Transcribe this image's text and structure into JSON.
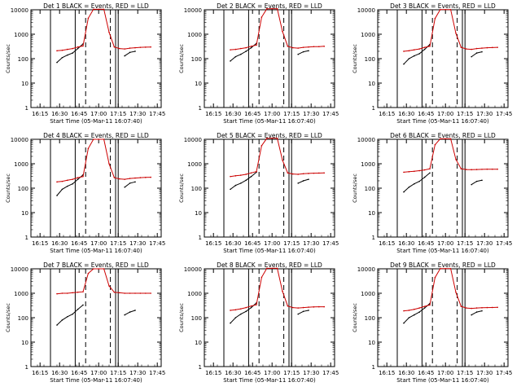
{
  "figure": {
    "background": "#ffffff",
    "event_color": "#000000",
    "lld_color": "#cc0000"
  },
  "chart_data": [
    {
      "type": "line",
      "title": "Det  1  BLACK = Events, RED = LLD",
      "ylabel": "Counts/sec",
      "xlabel": "Start Time (05-Mar-11 16:07:40)",
      "y_scale": "log",
      "ylim": [
        1,
        10000
      ],
      "yticks": [
        "1",
        "10",
        "100",
        "1000",
        "10000"
      ],
      "xticks": [
        "16:15",
        "16:30",
        "16:45",
        "17:00",
        "17:15",
        "17:30",
        "17:45"
      ],
      "x": [
        "16:24",
        "16:28",
        "16:32",
        "16:36",
        "16:40",
        "16:44",
        "16:48",
        "16:52",
        "16:56",
        "17:00",
        "17:04",
        "17:08",
        "17:12",
        "17:16",
        "17:20",
        "17:24",
        "17:28",
        "17:32",
        "17:36",
        "17:40"
      ],
      "series": [
        {
          "name": "Events",
          "color": "#000000",
          "values": [
            null,
            70,
            110,
            140,
            170,
            260,
            400,
            null,
            null,
            null,
            null,
            null,
            null,
            null,
            130,
            180,
            200,
            null,
            null,
            null
          ]
        },
        {
          "name": "LLD",
          "color": "#cc0000",
          "values": [
            null,
            210,
            220,
            240,
            260,
            300,
            330,
            4500,
            10500,
            10500,
            10500,
            1200,
            300,
            260,
            250,
            270,
            280,
            290,
            295,
            300
          ]
        }
      ],
      "vertical_lines": {
        "solid": [
          "16:23",
          "16:42",
          "17:13",
          "17:15"
        ],
        "dashed": [
          "16:50",
          "17:09"
        ]
      }
    },
    {
      "type": "line",
      "title": "Det  2  BLACK = Events, RED = LLD",
      "ylabel": "Counts/sec",
      "xlabel": "Start Time (05-Mar-11 16:07:40)",
      "y_scale": "log",
      "ylim": [
        1,
        10000
      ],
      "yticks": [
        "1",
        "10",
        "100",
        "1000",
        "10000"
      ],
      "xticks": [
        "16:15",
        "16:30",
        "16:45",
        "17:00",
        "17:15",
        "17:30",
        "17:45"
      ],
      "x": [
        "16:24",
        "16:28",
        "16:32",
        "16:36",
        "16:40",
        "16:44",
        "16:48",
        "16:52",
        "16:56",
        "17:00",
        "17:04",
        "17:08",
        "17:12",
        "17:16",
        "17:20",
        "17:24",
        "17:28",
        "17:32",
        "17:36",
        "17:40"
      ],
      "series": [
        {
          "name": "Events",
          "color": "#000000",
          "values": [
            null,
            80,
            120,
            150,
            200,
            280,
            420,
            null,
            null,
            null,
            null,
            null,
            null,
            null,
            150,
            190,
            210,
            null,
            null,
            null
          ]
        },
        {
          "name": "LLD",
          "color": "#cc0000",
          "values": [
            null,
            230,
            240,
            260,
            280,
            320,
            360,
            5000,
            11000,
            11000,
            11000,
            1300,
            320,
            280,
            270,
            290,
            300,
            310,
            310,
            320
          ]
        }
      ],
      "vertical_lines": {
        "solid": [
          "16:23",
          "16:42",
          "17:13",
          "17:15"
        ],
        "dashed": [
          "16:50",
          "17:09"
        ]
      }
    },
    {
      "type": "line",
      "title": "Det  3  BLACK = Events, RED = LLD",
      "ylabel": "Counts/sec",
      "xlabel": "Start Time (05-Mar-11 16:07:40)",
      "y_scale": "log",
      "ylim": [
        1,
        10000
      ],
      "yticks": [
        "1",
        "10",
        "100",
        "1000",
        "10000"
      ],
      "xticks": [
        "16:15",
        "16:30",
        "16:45",
        "17:00",
        "17:15",
        "17:30",
        "17:45"
      ],
      "x": [
        "16:24",
        "16:28",
        "16:32",
        "16:36",
        "16:40",
        "16:44",
        "16:48",
        "16:52",
        "16:56",
        "17:00",
        "17:04",
        "17:08",
        "17:12",
        "17:16",
        "17:20",
        "17:24",
        "17:28",
        "17:32",
        "17:36",
        "17:40"
      ],
      "series": [
        {
          "name": "Events",
          "color": "#000000",
          "values": [
            null,
            60,
            100,
            130,
            160,
            240,
            380,
            null,
            null,
            null,
            null,
            null,
            null,
            null,
            120,
            170,
            190,
            null,
            null,
            null
          ]
        },
        {
          "name": "LLD",
          "color": "#cc0000",
          "values": [
            null,
            200,
            210,
            230,
            250,
            290,
            320,
            4400,
            10200,
            10200,
            10200,
            1100,
            290,
            250,
            240,
            260,
            270,
            280,
            285,
            290
          ]
        }
      ],
      "vertical_lines": {
        "solid": [
          "16:23",
          "16:42",
          "17:13",
          "17:15"
        ],
        "dashed": [
          "16:50",
          "17:09"
        ]
      }
    },
    {
      "type": "line",
      "title": "Det  4  BLACK = Events, RED = LLD",
      "ylabel": "Counts/sec",
      "xlabel": "Start Time (05-Mar-11 16:07:40)",
      "y_scale": "log",
      "ylim": [
        1,
        10000
      ],
      "yticks": [
        "1",
        "10",
        "100",
        "1000",
        "10000"
      ],
      "xticks": [
        "16:15",
        "16:30",
        "16:45",
        "17:00",
        "17:15",
        "17:30",
        "17:45"
      ],
      "x": [
        "16:24",
        "16:28",
        "16:32",
        "16:36",
        "16:40",
        "16:44",
        "16:48",
        "16:52",
        "16:56",
        "17:00",
        "17:04",
        "17:08",
        "17:12",
        "17:16",
        "17:20",
        "17:24",
        "17:28",
        "17:32",
        "17:36",
        "17:40"
      ],
      "series": [
        {
          "name": "Events",
          "color": "#000000",
          "values": [
            null,
            50,
            90,
            120,
            150,
            230,
            350,
            null,
            null,
            null,
            null,
            null,
            null,
            null,
            110,
            160,
            180,
            null,
            null,
            null
          ]
        },
        {
          "name": "LLD",
          "color": "#cc0000",
          "values": [
            null,
            180,
            190,
            210,
            230,
            270,
            300,
            4200,
            10000,
            10000,
            10000,
            1000,
            270,
            240,
            230,
            250,
            260,
            270,
            275,
            280
          ]
        }
      ],
      "vertical_lines": {
        "solid": [
          "16:23",
          "16:42",
          "17:13",
          "17:15"
        ],
        "dashed": [
          "16:50",
          "17:09"
        ]
      }
    },
    {
      "type": "line",
      "title": "Det  5  BLACK = Events, RED = LLD",
      "ylabel": "Counts/sec",
      "xlabel": "Start Time (05-Mar-11 16:07:40)",
      "y_scale": "log",
      "ylim": [
        1,
        10000
      ],
      "yticks": [
        "1",
        "10",
        "100",
        "1000",
        "10000"
      ],
      "xticks": [
        "16:15",
        "16:30",
        "16:45",
        "17:00",
        "17:15",
        "17:30",
        "17:45"
      ],
      "x": [
        "16:24",
        "16:28",
        "16:32",
        "16:36",
        "16:40",
        "16:44",
        "16:48",
        "16:52",
        "16:56",
        "17:00",
        "17:04",
        "17:08",
        "17:12",
        "17:16",
        "17:20",
        "17:24",
        "17:28",
        "17:32",
        "17:36",
        "17:40"
      ],
      "series": [
        {
          "name": "Events",
          "color": "#000000",
          "values": [
            null,
            90,
            130,
            160,
            210,
            300,
            450,
            null,
            null,
            null,
            null,
            null,
            null,
            null,
            160,
            200,
            230,
            null,
            null,
            null
          ]
        },
        {
          "name": "LLD",
          "color": "#cc0000",
          "values": [
            null,
            300,
            320,
            340,
            370,
            420,
            480,
            5500,
            11000,
            11000,
            11000,
            1400,
            420,
            380,
            370,
            390,
            400,
            410,
            415,
            420
          ]
        }
      ],
      "vertical_lines": {
        "solid": [
          "16:23",
          "16:42",
          "17:13",
          "17:15"
        ],
        "dashed": [
          "16:50",
          "17:09"
        ]
      }
    },
    {
      "type": "line",
      "title": "Det  6  BLACK = Events, RED = LLD",
      "ylabel": "Counts/sec",
      "xlabel": "Start Time (05-Mar-11 16:07:40)",
      "y_scale": "log",
      "ylim": [
        1,
        10000
      ],
      "yticks": [
        "1",
        "10",
        "100",
        "1000",
        "10000"
      ],
      "xticks": [
        "16:15",
        "16:30",
        "16:45",
        "17:00",
        "17:15",
        "17:30",
        "17:45"
      ],
      "x": [
        "16:24",
        "16:28",
        "16:32",
        "16:36",
        "16:40",
        "16:44",
        "16:48",
        "16:52",
        "16:56",
        "17:00",
        "17:04",
        "17:08",
        "17:12",
        "17:16",
        "17:20",
        "17:24",
        "17:28",
        "17:32",
        "17:36",
        "17:40"
      ],
      "series": [
        {
          "name": "Events",
          "color": "#000000",
          "values": [
            null,
            70,
            110,
            150,
            190,
            280,
            420,
            null,
            null,
            null,
            null,
            null,
            null,
            null,
            140,
            190,
            210,
            null,
            null,
            null
          ]
        },
        {
          "name": "LLD",
          "color": "#cc0000",
          "values": [
            null,
            450,
            470,
            490,
            520,
            560,
            620,
            6000,
            10500,
            10500,
            10500,
            1500,
            620,
            580,
            570,
            580,
            590,
            600,
            600,
            600
          ]
        }
      ],
      "vertical_lines": {
        "solid": [
          "16:23",
          "16:42",
          "17:13",
          "17:15"
        ],
        "dashed": [
          "16:50",
          "17:09"
        ]
      }
    },
    {
      "type": "line",
      "title": "Det  7  BLACK = Events, RED = LLD",
      "ylabel": "Counts/sec",
      "xlabel": "Start Time (05-Mar-11 16:07:40)",
      "y_scale": "log",
      "ylim": [
        1,
        10000
      ],
      "yticks": [
        "1",
        "10",
        "100",
        "1000",
        "10000"
      ],
      "xticks": [
        "16:15",
        "16:30",
        "16:45",
        "17:00",
        "17:15",
        "17:30",
        "17:45"
      ],
      "x": [
        "16:24",
        "16:28",
        "16:32",
        "16:36",
        "16:40",
        "16:44",
        "16:48",
        "16:52",
        "16:56",
        "17:00",
        "17:04",
        "17:08",
        "17:12",
        "17:16",
        "17:20",
        "17:24",
        "17:28",
        "17:32",
        "17:36",
        "17:40"
      ],
      "series": [
        {
          "name": "Events",
          "color": "#000000",
          "values": [
            null,
            50,
            80,
            110,
            140,
            220,
            330,
            null,
            null,
            null,
            null,
            null,
            null,
            null,
            130,
            170,
            200,
            null,
            null,
            null
          ]
        },
        {
          "name": "LLD",
          "color": "#cc0000",
          "values": [
            null,
            950,
            1000,
            1000,
            1050,
            1100,
            1150,
            6500,
            10000,
            10000,
            10000,
            2000,
            1100,
            1050,
            1000,
            1000,
            1000,
            1000,
            1000,
            1000
          ]
        }
      ],
      "vertical_lines": {
        "solid": [
          "16:23",
          "16:42",
          "17:13",
          "17:15"
        ],
        "dashed": [
          "16:50",
          "17:09"
        ]
      }
    },
    {
      "type": "line",
      "title": "Det  8  BLACK = Events, RED = LLD",
      "ylabel": "Counts/sec",
      "xlabel": "Start Time (05-Mar-11 16:07:40)",
      "y_scale": "log",
      "ylim": [
        1,
        10000
      ],
      "yticks": [
        "1",
        "10",
        "100",
        "1000",
        "10000"
      ],
      "xticks": [
        "16:15",
        "16:30",
        "16:45",
        "17:00",
        "17:15",
        "17:30",
        "17:45"
      ],
      "x": [
        "16:24",
        "16:28",
        "16:32",
        "16:36",
        "16:40",
        "16:44",
        "16:48",
        "16:52",
        "16:56",
        "17:00",
        "17:04",
        "17:08",
        "17:12",
        "17:16",
        "17:20",
        "17:24",
        "17:28",
        "17:32",
        "17:36",
        "17:40"
      ],
      "series": [
        {
          "name": "Events",
          "color": "#000000",
          "values": [
            null,
            60,
            100,
            140,
            180,
            260,
            400,
            null,
            null,
            null,
            null,
            null,
            null,
            null,
            140,
            180,
            200,
            null,
            null,
            null
          ]
        },
        {
          "name": "LLD",
          "color": "#cc0000",
          "values": [
            null,
            200,
            210,
            230,
            260,
            300,
            340,
            4500,
            10500,
            10500,
            10500,
            1200,
            300,
            260,
            250,
            260,
            270,
            275,
            280,
            280
          ]
        }
      ],
      "vertical_lines": {
        "solid": [
          "16:23",
          "16:42",
          "17:13",
          "17:15"
        ],
        "dashed": [
          "16:50",
          "17:09"
        ]
      }
    },
    {
      "type": "line",
      "title": "Det  9  BLACK = Events, RED = LLD",
      "ylabel": "Counts/sec",
      "xlabel": "Start Time (05-Mar-11 16:07:40)",
      "y_scale": "log",
      "ylim": [
        1,
        10000
      ],
      "yticks": [
        "1",
        "10",
        "100",
        "1000",
        "10000"
      ],
      "xticks": [
        "16:15",
        "16:30",
        "16:45",
        "17:00",
        "17:15",
        "17:30",
        "17:45"
      ],
      "x": [
        "16:24",
        "16:28",
        "16:32",
        "16:36",
        "16:40",
        "16:44",
        "16:48",
        "16:52",
        "16:56",
        "17:00",
        "17:04",
        "17:08",
        "17:12",
        "17:16",
        "17:20",
        "17:24",
        "17:28",
        "17:32",
        "17:36",
        "17:40"
      ],
      "series": [
        {
          "name": "Events",
          "color": "#000000",
          "values": [
            null,
            60,
            100,
            130,
            170,
            250,
            380,
            null,
            null,
            null,
            null,
            null,
            null,
            null,
            130,
            170,
            190,
            null,
            null,
            null
          ]
        },
        {
          "name": "LLD",
          "color": "#cc0000",
          "values": [
            null,
            190,
            200,
            220,
            250,
            290,
            330,
            4400,
            10200,
            10200,
            10200,
            1100,
            290,
            250,
            240,
            250,
            255,
            260,
            262,
            265
          ]
        }
      ],
      "vertical_lines": {
        "solid": [
          "16:23",
          "16:42",
          "17:13",
          "17:15"
        ],
        "dashed": [
          "16:50",
          "17:09"
        ]
      }
    }
  ]
}
